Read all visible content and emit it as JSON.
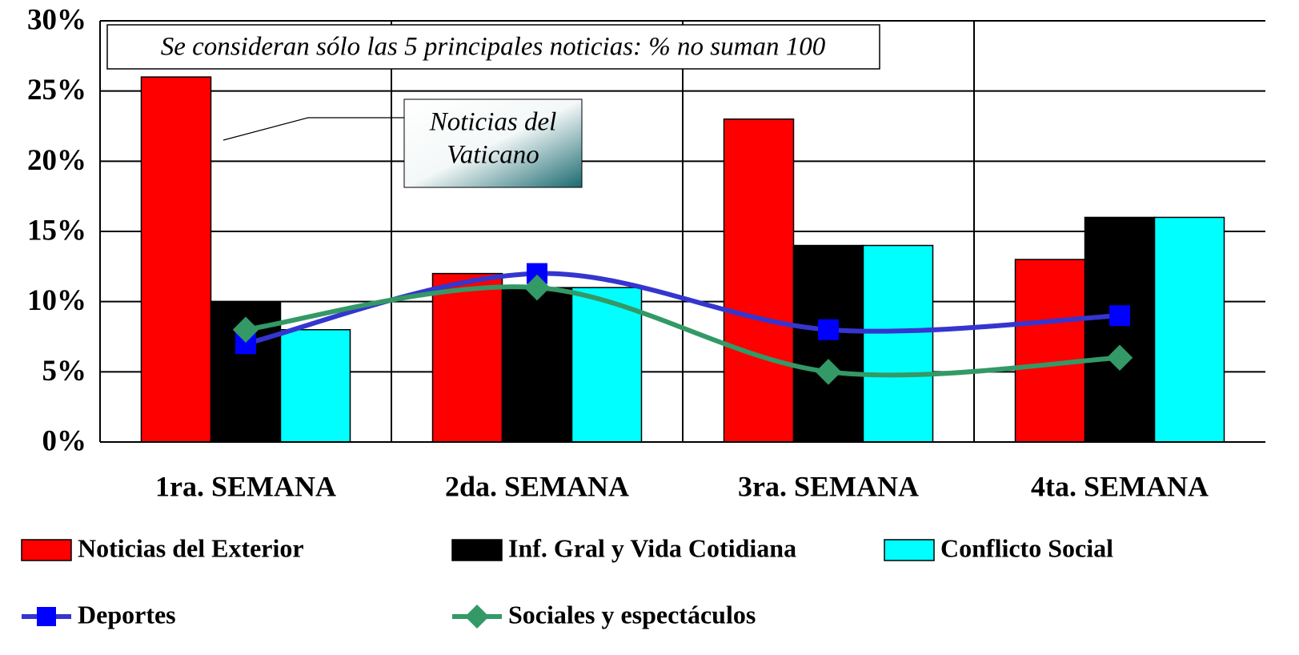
{
  "chart_data": {
    "type": "bar",
    "categories": [
      "1ra. SEMANA",
      "2da. SEMANA",
      "3ra. SEMANA",
      "4ta. SEMANA"
    ],
    "series": [
      {
        "name": "Noticias del Exterior",
        "color": "#ff0000",
        "kind": "bar",
        "values": [
          26,
          12,
          23,
          13
        ]
      },
      {
        "name": "Inf. Gral y Vida Cotidiana",
        "color": "#000000",
        "kind": "bar",
        "values": [
          10,
          11,
          14,
          16
        ]
      },
      {
        "name": "Conflicto Social",
        "color": "#00ffff",
        "kind": "bar",
        "values": [
          8,
          11,
          14,
          16
        ]
      },
      {
        "name": "Deportes",
        "color": "#3535cf",
        "marker_color": "#0000ff",
        "kind": "line",
        "marker": "square",
        "values": [
          7,
          12,
          8,
          9
        ]
      },
      {
        "name": "Sociales y espectáculos",
        "color": "#339966",
        "marker_color": "#339966",
        "kind": "line",
        "marker": "diamond",
        "values": [
          8,
          11,
          5,
          6
        ]
      }
    ],
    "ylim": [
      0,
      30
    ],
    "yticks": [
      {
        "value": 0,
        "label": "0%"
      },
      {
        "value": 5,
        "label": "5%"
      },
      {
        "value": 10,
        "label": "10%"
      },
      {
        "value": 15,
        "label": "15%"
      },
      {
        "value": 20,
        "label": "20%"
      },
      {
        "value": 25,
        "label": "25%"
      },
      {
        "value": 30,
        "label": "30%"
      }
    ],
    "grid": true,
    "note": "Se consideran sólo las 5 principales noticias: % no suman 100",
    "callout": [
      "Noticias del",
      "Vaticano"
    ]
  }
}
